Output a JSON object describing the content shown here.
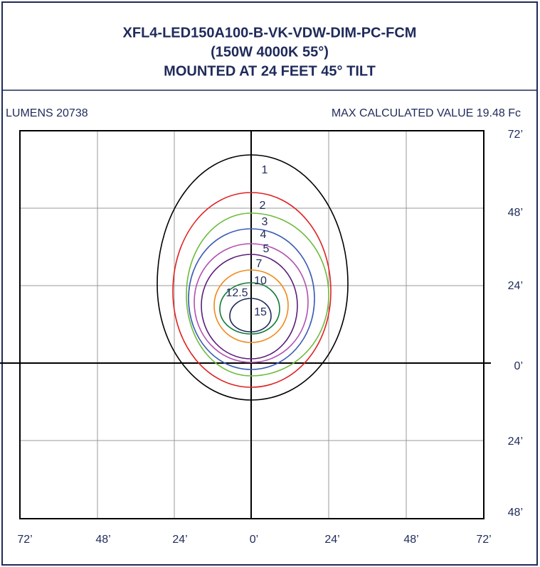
{
  "header": {
    "title_lines": [
      "XFL4-LED150A100-B-VK-VDW-DIM-PC-FCM",
      "(150W 4000K 55°)",
      "MOUNTED AT 24 FEET 45° TILT"
    ]
  },
  "info": {
    "lumens": "LUMENS 20738",
    "max_value": "MAX CALCULATED VALUE 19.48 Fc"
  },
  "y_axis_labels": [
    "72’",
    "48’",
    "24’",
    "0’",
    "24’",
    "48’"
  ],
  "x_axis_labels": [
    "72’",
    "48’",
    "24’",
    "0’",
    "24’",
    "48’",
    "72’"
  ],
  "contour_labels": [
    "1",
    "2",
    "3",
    "4",
    "5",
    "7",
    "10",
    "12.5",
    "15"
  ]
}
